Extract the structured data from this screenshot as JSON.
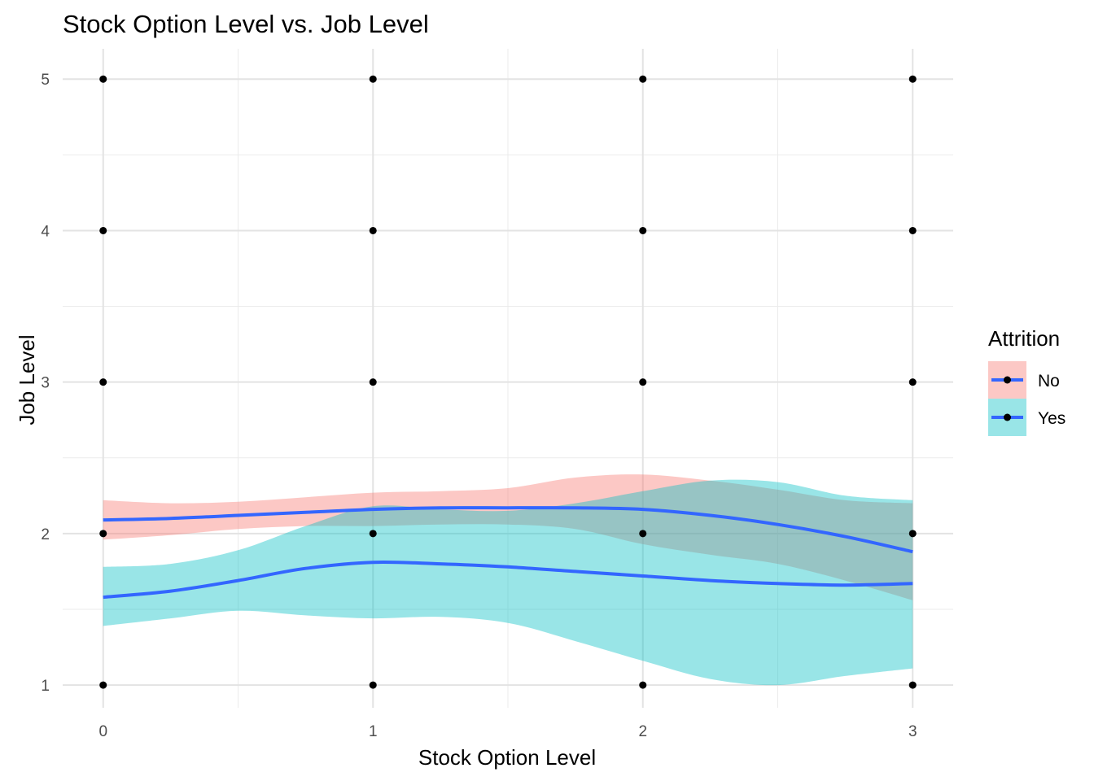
{
  "chart_data": {
    "type": "scatter",
    "title": "Stock Option Level vs. Job Level",
    "xlabel": "Stock Option Level",
    "ylabel": "Job Level",
    "xlim": [
      -0.15,
      3.15
    ],
    "ylim": [
      0.85,
      5.2
    ],
    "x_ticks": [
      0,
      1,
      2,
      3
    ],
    "y_ticks": [
      1,
      2,
      3,
      4,
      5
    ],
    "grid": true,
    "legend_position": "right",
    "legend_title": "Attrition",
    "points": {
      "color": "#000000",
      "xy": [
        [
          0,
          1
        ],
        [
          0,
          2
        ],
        [
          0,
          3
        ],
        [
          0,
          4
        ],
        [
          0,
          5
        ],
        [
          1,
          1
        ],
        [
          1,
          2
        ],
        [
          1,
          3
        ],
        [
          1,
          4
        ],
        [
          1,
          5
        ],
        [
          2,
          1
        ],
        [
          2,
          2
        ],
        [
          2,
          3
        ],
        [
          2,
          4
        ],
        [
          2,
          5
        ],
        [
          3,
          1
        ],
        [
          3,
          2
        ],
        [
          3,
          3
        ],
        [
          3,
          4
        ],
        [
          3,
          5
        ]
      ]
    },
    "smooth_color": "#3366ff",
    "series": [
      {
        "name": "No",
        "band_color": "#f8766d",
        "x": [
          0,
          0.25,
          0.5,
          0.75,
          1,
          1.25,
          1.5,
          1.75,
          2,
          2.25,
          2.5,
          2.75,
          3
        ],
        "fit": [
          2.09,
          2.1,
          2.12,
          2.14,
          2.16,
          2.17,
          2.17,
          2.17,
          2.16,
          2.12,
          2.06,
          1.98,
          1.88
        ],
        "lower": [
          1.96,
          1.99,
          2.03,
          2.05,
          2.05,
          2.06,
          2.06,
          2.03,
          1.93,
          1.86,
          1.8,
          1.69,
          1.56
        ],
        "upper": [
          2.22,
          2.2,
          2.21,
          2.24,
          2.27,
          2.28,
          2.3,
          2.37,
          2.39,
          2.35,
          2.29,
          2.22,
          2.2
        ]
      },
      {
        "name": "Yes",
        "band_color": "#00bfc4",
        "x": [
          0,
          0.25,
          0.5,
          0.75,
          1,
          1.25,
          1.5,
          1.75,
          2,
          2.25,
          2.5,
          2.75,
          3
        ],
        "fit": [
          1.58,
          1.62,
          1.69,
          1.77,
          1.81,
          1.8,
          1.78,
          1.75,
          1.72,
          1.69,
          1.67,
          1.66,
          1.67
        ],
        "lower": [
          1.39,
          1.44,
          1.49,
          1.46,
          1.44,
          1.45,
          1.41,
          1.29,
          1.16,
          1.04,
          1.0,
          1.06,
          1.11
        ],
        "upper": [
          1.78,
          1.8,
          1.89,
          2.05,
          2.18,
          2.16,
          2.15,
          2.2,
          2.28,
          2.35,
          2.34,
          2.25,
          2.22
        ]
      }
    ]
  }
}
